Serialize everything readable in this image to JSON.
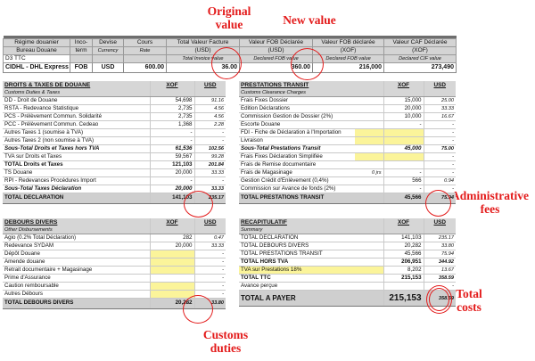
{
  "annotations": {
    "original_value": "Original value",
    "new_value": "New value",
    "administrative_fees": "Administrative fees",
    "total_costs": "Total costs",
    "customs_duties": "Customs duties"
  },
  "header": {
    "columns": [
      "Régime douanier",
      "Inco-",
      "Devise",
      "Cours",
      "Total Valeur Facture",
      "Valeur FOB Déclarée",
      "Valeur FOB déclarée",
      "Valeur CAF Déclarée"
    ],
    "columns2": [
      "Bureau Douane",
      "term",
      "",
      "",
      "(USD)",
      "(USD)",
      "(XOF)",
      "(XOF)"
    ],
    "sublabels": [
      "",
      "",
      "Currency",
      "Rate",
      "Total Invoice value",
      "Declared FOB value",
      "Declared FOB value",
      "Declared CIF value"
    ],
    "row1": [
      "D3 TTC"
    ],
    "row2": [
      "CIDHL - DHL Express",
      "FOB",
      "USD",
      "600.00",
      "36.00",
      "360.00",
      "216,000",
      "273,490"
    ]
  },
  "droits": {
    "title": "DROITS & TAXES DE DOUANE",
    "subtitle": "Customs Duties & Taxes",
    "col1": "XOF",
    "col2": "USD",
    "rows": [
      {
        "label": "DD - Droit de Douane",
        "xof": "54,698",
        "usd": "91.16",
        "style": ""
      },
      {
        "label": "RSTA - Redevance Statistique",
        "xof": "2,735",
        "usd": "4.56",
        "style": ""
      },
      {
        "label": "PCS - Prélèvement Commun. Solidarité",
        "xof": "2,735",
        "usd": "4.56",
        "style": ""
      },
      {
        "label": "PCC - Prélèvement Commun. Cedeao",
        "xof": "1,368",
        "usd": "2.28",
        "style": ""
      },
      {
        "label": "Autres Taxes 1 (soumise à TVA)",
        "xof": "-",
        "usd": "-",
        "style": ""
      },
      {
        "label": "Autres Taxes 2 (non soumise à TVA)",
        "xof": "-",
        "usd": "-",
        "style": ""
      },
      {
        "label": "Sous-Total Droits et Taxes hors TVA",
        "xof": "61,536",
        "usd": "102.56",
        "style": "bi"
      },
      {
        "label": "TVA sur Droits et Taxes",
        "xof": "59,567",
        "usd": "99.28",
        "style": ""
      },
      {
        "label": "TOTAL Droits et Taxes",
        "xof": "121,103",
        "usd": "201.84",
        "style": "bold"
      },
      {
        "label": "TS Douane",
        "xof": "20,000",
        "usd": "33.33",
        "style": ""
      },
      {
        "label": "RPI - Redevances Procédures Import",
        "xof": "-",
        "usd": "-",
        "style": ""
      },
      {
        "label": "Sous-Total Taxes Déclaration",
        "xof": "20,000",
        "usd": "33.33",
        "style": "bi"
      }
    ],
    "total_label": "TOTAL DECLARATION",
    "total_xof": "141,103",
    "total_usd": "235.17"
  },
  "debours": {
    "title": "DEBOURS DIVERS",
    "subtitle": "Other Disbursements",
    "col1": "XOF",
    "col2": "USD",
    "rows": [
      {
        "label": "Agio (0.2% Total Déclaration)",
        "xof": "282",
        "usd": "0.47",
        "yellow": false
      },
      {
        "label": "Redevance SYDAM",
        "xof": "20,000",
        "usd": "33.33",
        "yellow": false
      },
      {
        "label": "Dépôt Douane",
        "xof": "",
        "usd": "-",
        "yellow": true
      },
      {
        "label": "Amende douane",
        "xof": "",
        "usd": "-",
        "yellow": true
      },
      {
        "label": "Retrait documentaire + Magasinage",
        "xof": "",
        "usd": "-",
        "yellow": true
      },
      {
        "label": "Prime d'Assurance",
        "xof": "",
        "usd": "-",
        "yellow": false
      },
      {
        "label": "Caution remboursable",
        "xof": "",
        "usd": "-",
        "yellow": true
      },
      {
        "label": "Autres Débours",
        "xof": "",
        "usd": "-",
        "yellow": true
      }
    ],
    "total_label": "TOTAL DEBOURS DIVERS",
    "total_xof": "20,282",
    "total_usd": "33.80"
  },
  "prestations": {
    "title": "PRESTATIONS TRANSIT",
    "subtitle": "Customs Clearance Charges",
    "col1": "XOF",
    "col2": "USD",
    "rows": [
      {
        "label": "Frais Fixes Dossier",
        "mid": "",
        "xof": "15,000",
        "usd": "25.00",
        "style": "",
        "yellow": false
      },
      {
        "label": "Edition Déclarations",
        "mid": "",
        "xof": "20,000",
        "usd": "33.33",
        "style": "",
        "yellow": false
      },
      {
        "label": "Commission Gestion de Dossier (2%)",
        "mid": "",
        "xof": "10,000",
        "usd": "16.67",
        "style": "",
        "yellow": false
      },
      {
        "label": "Escorte Douane",
        "mid": "",
        "xof": "-",
        "usd": "-",
        "style": "",
        "yellow": false
      },
      {
        "label": "FDI - Fiche de Déclaration à l'Importation",
        "mid": "",
        "xof": "",
        "usd": "-",
        "style": "",
        "yellow": true
      },
      {
        "label": "Livraison",
        "mid": "",
        "xof": "",
        "usd": "-",
        "style": "",
        "yellow": true
      },
      {
        "label": "Sous-Total Prestations Transit",
        "mid": "",
        "xof": "45,000",
        "usd": "75.00",
        "style": "bi",
        "yellow": false
      },
      {
        "label": "Frais Fixes Déclaration Simplifiée",
        "mid": "",
        "xof": "",
        "usd": "-",
        "style": "",
        "yellow": true
      },
      {
        "label": "Frais de Remise documentaire",
        "mid": "",
        "xof": "",
        "usd": "-",
        "style": "",
        "yellow": false
      },
      {
        "label": "Frais de Magasinage",
        "mid": "0 jrs",
        "xof": "-",
        "usd": "-",
        "style": "",
        "yellow": false
      },
      {
        "label": "Gestion Crédit d'Enlèvement (0,4%)",
        "mid": "",
        "xof": "566",
        "usd": "0.94",
        "style": "",
        "yellow": false
      },
      {
        "label": "Commission sur Avance de fonds (2%)",
        "mid": "",
        "xof": "-",
        "usd": "-",
        "style": "",
        "yellow": false
      }
    ],
    "total_label": "TOTAL PRESTATIONS TRANSIT",
    "total_xof": "45,566",
    "total_usd": "75.94"
  },
  "recap": {
    "title": "RECAPITULATIF",
    "subtitle": "Summary",
    "col1": "XOF",
    "col2": "USD",
    "rows": [
      {
        "label": "TOTAL DECLARATION",
        "xof": "141,103",
        "usd": "235.17",
        "style": "",
        "yellow": false
      },
      {
        "label": "TOTAL DEBOURS DIVERS",
        "xof": "20,282",
        "usd": "33.80",
        "style": "",
        "yellow": false
      },
      {
        "label": "TOTAL PRESTATIONS TRANSIT",
        "xof": "45,566",
        "usd": "75.94",
        "style": "",
        "yellow": false
      },
      {
        "label": "TOTAL HORS TVA",
        "xof": "206,951",
        "usd": "344.92",
        "style": "bold",
        "yellow": false
      },
      {
        "label": "TVA sur Prestations 18%",
        "xof": "8,202",
        "usd": "13.67",
        "style": "",
        "yellow": true
      },
      {
        "label": "TOTAL TTC",
        "xof": "215,153",
        "usd": "358.59",
        "style": "bold",
        "yellow": false
      },
      {
        "label": "Avance perçue",
        "xof": "",
        "usd": "-",
        "style": "",
        "yellow": false
      }
    ],
    "total_label": "TOTAL A PAYER",
    "total_xof": "215,153",
    "total_usd": "358.59"
  }
}
